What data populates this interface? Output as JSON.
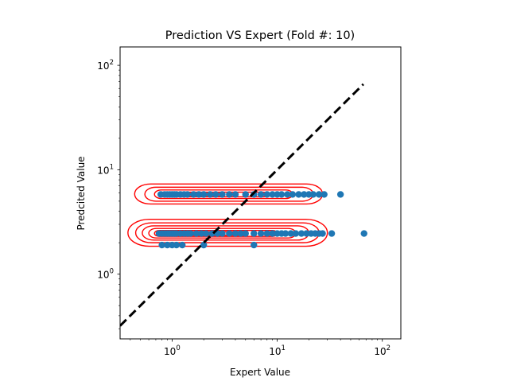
{
  "chart_data": {
    "type": "scatter",
    "title": "Prediction VS Expert (Fold #: 10)",
    "xlabel": "Expert Value",
    "ylabel": "Predcited Value",
    "xscale": "log",
    "yscale": "log",
    "xlim": [
      0.32,
      150
    ],
    "ylim": [
      0.24,
      150
    ],
    "grid": false,
    "xticks": [
      {
        "value": 1,
        "base": "10",
        "exp": "0"
      },
      {
        "value": 10,
        "base": "10",
        "exp": "1"
      },
      {
        "value": 100,
        "base": "10",
        "exp": "2"
      }
    ],
    "yticks": [
      {
        "value": 1,
        "base": "10",
        "exp": "0"
      },
      {
        "value": 10,
        "base": "10",
        "exp": "1"
      },
      {
        "value": 100,
        "base": "10",
        "exp": "2"
      }
    ],
    "reference_line": {
      "style": "dashed",
      "color": "#000000",
      "from": [
        0.32,
        0.32
      ],
      "to": [
        66,
        66
      ]
    },
    "series": [
      {
        "kind": "points",
        "color": "#1f77b4",
        "points": [
          [
            0.78,
            5.8
          ],
          [
            0.85,
            5.8
          ],
          [
            0.9,
            5.8
          ],
          [
            0.95,
            5.8
          ],
          [
            1.0,
            5.8
          ],
          [
            1.05,
            5.8
          ],
          [
            1.1,
            5.8
          ],
          [
            1.2,
            5.8
          ],
          [
            1.3,
            5.8
          ],
          [
            1.4,
            5.8
          ],
          [
            1.6,
            5.8
          ],
          [
            1.8,
            5.8
          ],
          [
            2.0,
            5.8
          ],
          [
            2.3,
            5.8
          ],
          [
            2.6,
            5.8
          ],
          [
            3.0,
            5.8
          ],
          [
            3.5,
            5.8
          ],
          [
            4.0,
            5.8
          ],
          [
            5.0,
            5.8
          ],
          [
            6.0,
            5.8
          ],
          [
            7.0,
            5.8
          ],
          [
            8.0,
            5.8
          ],
          [
            9.0,
            5.8
          ],
          [
            10.0,
            5.8
          ],
          [
            11.0,
            5.8
          ],
          [
            12.5,
            5.8
          ],
          [
            14.0,
            5.8
          ],
          [
            16.0,
            5.8
          ],
          [
            18.0,
            5.8
          ],
          [
            20.0,
            5.8
          ],
          [
            22.0,
            5.8
          ],
          [
            25.0,
            5.8
          ],
          [
            28.0,
            5.8
          ],
          [
            40.0,
            5.8
          ],
          [
            0.75,
            2.45
          ],
          [
            0.8,
            2.45
          ],
          [
            0.85,
            2.45
          ],
          [
            0.9,
            2.45
          ],
          [
            0.95,
            2.45
          ],
          [
            1.0,
            2.45
          ],
          [
            1.05,
            2.45
          ],
          [
            1.1,
            2.45
          ],
          [
            1.2,
            2.45
          ],
          [
            1.3,
            2.45
          ],
          [
            1.4,
            2.45
          ],
          [
            1.5,
            2.45
          ],
          [
            1.7,
            2.45
          ],
          [
            1.9,
            2.45
          ],
          [
            2.1,
            2.45
          ],
          [
            2.4,
            2.45
          ],
          [
            2.7,
            2.45
          ],
          [
            3.0,
            2.45
          ],
          [
            3.5,
            2.45
          ],
          [
            4.0,
            2.45
          ],
          [
            4.5,
            2.45
          ],
          [
            5.0,
            2.45
          ],
          [
            6.0,
            2.45
          ],
          [
            7.0,
            2.45
          ],
          [
            8.0,
            2.45
          ],
          [
            9.0,
            2.45
          ],
          [
            10.0,
            2.45
          ],
          [
            11.0,
            2.45
          ],
          [
            12.0,
            2.45
          ],
          [
            13.5,
            2.45
          ],
          [
            15.0,
            2.45
          ],
          [
            17.0,
            2.45
          ],
          [
            19.0,
            2.45
          ],
          [
            21.0,
            2.45
          ],
          [
            23.0,
            2.45
          ],
          [
            25.0,
            2.45
          ],
          [
            27.0,
            2.45
          ],
          [
            33.0,
            2.45
          ],
          [
            67.0,
            2.45
          ],
          [
            0.8,
            1.9
          ],
          [
            0.9,
            1.9
          ],
          [
            1.0,
            1.9
          ],
          [
            1.1,
            1.9
          ],
          [
            1.25,
            1.9
          ],
          [
            2.0,
            1.9
          ],
          [
            6.0,
            1.9
          ]
        ]
      }
    ],
    "density_contours": {
      "color": "#ff0000",
      "levels": [
        {
          "cy": 5.8,
          "x_min": 0.44,
          "x_max": 27.0,
          "y_min": 4.7,
          "y_max": 7.3
        },
        {
          "cy": 5.8,
          "x_min": 0.55,
          "x_max": 22.0,
          "y_min": 5.0,
          "y_max": 6.8
        },
        {
          "cy": 5.8,
          "x_min": 0.68,
          "x_max": 14.0,
          "y_min": 5.3,
          "y_max": 6.4
        },
        {
          "cy": 5.8,
          "x_min": 0.74,
          "x_max": 8.0,
          "y_min": 5.5,
          "y_max": 6.1
        },
        {
          "cy": 5.8,
          "x_min": 0.85,
          "x_max": 3.0,
          "y_min": 5.65,
          "y_max": 5.95
        },
        {
          "cy": 2.45,
          "x_min": 0.38,
          "x_max": 30.0,
          "y_min": 1.85,
          "y_max": 3.35
        },
        {
          "cy": 2.45,
          "x_min": 0.45,
          "x_max": 25.0,
          "y_min": 2.0,
          "y_max": 3.1
        },
        {
          "cy": 2.45,
          "x_min": 0.52,
          "x_max": 20.0,
          "y_min": 2.12,
          "y_max": 2.9
        },
        {
          "cy": 2.45,
          "x_min": 0.6,
          "x_max": 15.0,
          "y_min": 2.22,
          "y_max": 2.74
        },
        {
          "cy": 2.45,
          "x_min": 0.68,
          "x_max": 10.0,
          "y_min": 2.3,
          "y_max": 2.62
        },
        {
          "cy": 2.45,
          "x_min": 0.76,
          "x_max": 5.0,
          "y_min": 2.36,
          "y_max": 2.54
        }
      ]
    }
  }
}
